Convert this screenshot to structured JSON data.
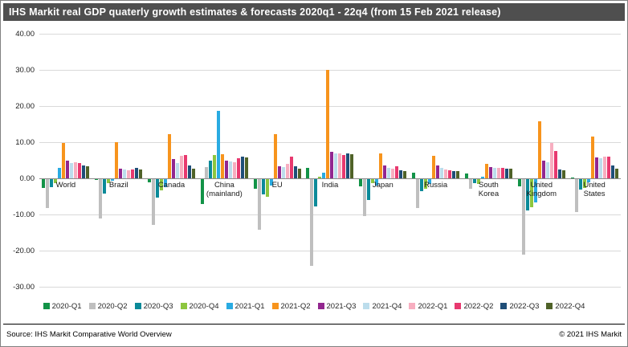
{
  "title": "IHS Markit real GDP quaterly growth estimates & forecasts 2020q1 - 22q4  (from 15 Feb 2021 release)",
  "footer": {
    "source": "Source: IHS Markit Comparative World Overview",
    "copyright": "© 2021 IHS Markit"
  },
  "colors": {
    "title_bar": "#4F4F4F",
    "gridline": "#D9D9D9",
    "zero_line": "#8C8C8C"
  },
  "chart_data": {
    "type": "bar",
    "title": "IHS Markit real GDP quaterly growth estimates & forecasts 2020q1 - 22q4 (from 15 Feb 2021 release)",
    "xlabel": "",
    "ylabel": "",
    "ylim": [
      -30,
      40
    ],
    "ytick_step": 10,
    "ytick_labels": [
      "40.00",
      "30.00",
      "20.00",
      "10.00",
      "0.00",
      "-10.00",
      "-20.00",
      "-30.00"
    ],
    "grid": true,
    "legend_position": "bottom",
    "categories": [
      "World",
      "Brazil",
      "Canada",
      "China (mainland)",
      "EU",
      "India",
      "Japan",
      "Russia",
      "South Korea",
      "United Kingdom",
      "United States"
    ],
    "category_lines": [
      [
        "World"
      ],
      [
        "Brazil"
      ],
      [
        "Canada"
      ],
      [
        "China",
        "(mainland)"
      ],
      [
        "EU"
      ],
      [
        "India"
      ],
      [
        "Japan"
      ],
      [
        "Russia"
      ],
      [
        "South",
        "Korea"
      ],
      [
        "United",
        "Kingdom"
      ],
      [
        "United",
        "States"
      ]
    ],
    "series": [
      {
        "name": "2020-Q1",
        "color": "#129347",
        "values": [
          -2.5,
          -0.3,
          -0.9,
          -6.8,
          -2.6,
          3.0,
          -2.1,
          1.6,
          1.4,
          -2.1,
          0.3
        ]
      },
      {
        "name": "2020-Q2",
        "color": "#BFBFBF",
        "values": [
          -7.9,
          -10.9,
          -12.7,
          3.2,
          -13.9,
          -23.9,
          -10.3,
          -8.0,
          -2.7,
          -20.8,
          -9.0
        ]
      },
      {
        "name": "2020-Q3",
        "color": "#0B8A99",
        "values": [
          -2.3,
          -3.9,
          -5.2,
          4.9,
          -4.2,
          -7.5,
          -5.8,
          -3.4,
          -1.1,
          -8.6,
          -2.8
        ]
      },
      {
        "name": "2020-Q4",
        "color": "#8DC63F",
        "values": [
          -1.0,
          -1.2,
          -3.2,
          6.5,
          -4.8,
          0.4,
          -1.2,
          -2.6,
          -1.4,
          -7.8,
          -2.4
        ]
      },
      {
        "name": "2021-Q1",
        "color": "#29ABE2",
        "values": [
          2.8,
          -0.5,
          -2.3,
          18.7,
          -1.7,
          1.5,
          -1.8,
          -1.3,
          0.5,
          -6.5,
          -0.9
        ]
      },
      {
        "name": "2021-Q2",
        "color": "#F7941D",
        "values": [
          9.7,
          10.0,
          12.2,
          6.6,
          12.2,
          30.0,
          7.0,
          6.3,
          4.0,
          15.8,
          11.5
        ]
      },
      {
        "name": "2021-Q3",
        "color": "#92278F",
        "values": [
          4.8,
          2.6,
          5.3,
          5.0,
          3.4,
          7.3,
          3.6,
          3.6,
          3.1,
          5.0,
          5.8
        ]
      },
      {
        "name": "2021-Q4",
        "color": "#BCDDEC",
        "values": [
          4.3,
          2.4,
          4.3,
          4.6,
          3.2,
          6.8,
          3.0,
          3.0,
          3.0,
          4.5,
          5.5
        ]
      },
      {
        "name": "2022-Q1",
        "color": "#F7AEC0",
        "values": [
          4.4,
          2.3,
          6.3,
          4.4,
          4.0,
          6.9,
          2.6,
          2.4,
          2.9,
          9.7,
          6.0
        ]
      },
      {
        "name": "2022-Q2",
        "color": "#E8396F",
        "values": [
          4.2,
          2.5,
          6.5,
          5.6,
          5.9,
          6.5,
          3.3,
          2.2,
          3.0,
          7.5,
          6.0
        ]
      },
      {
        "name": "2022-Q3",
        "color": "#1F4E78",
        "values": [
          3.6,
          2.8,
          3.6,
          6.0,
          3.3,
          6.8,
          2.2,
          2.1,
          2.7,
          2.4,
          3.5
        ]
      },
      {
        "name": "2022-Q4",
        "color": "#4F6228",
        "values": [
          3.4,
          2.5,
          2.6,
          5.8,
          2.7,
          6.6,
          2.0,
          1.9,
          2.6,
          2.2,
          2.7
        ]
      }
    ]
  }
}
